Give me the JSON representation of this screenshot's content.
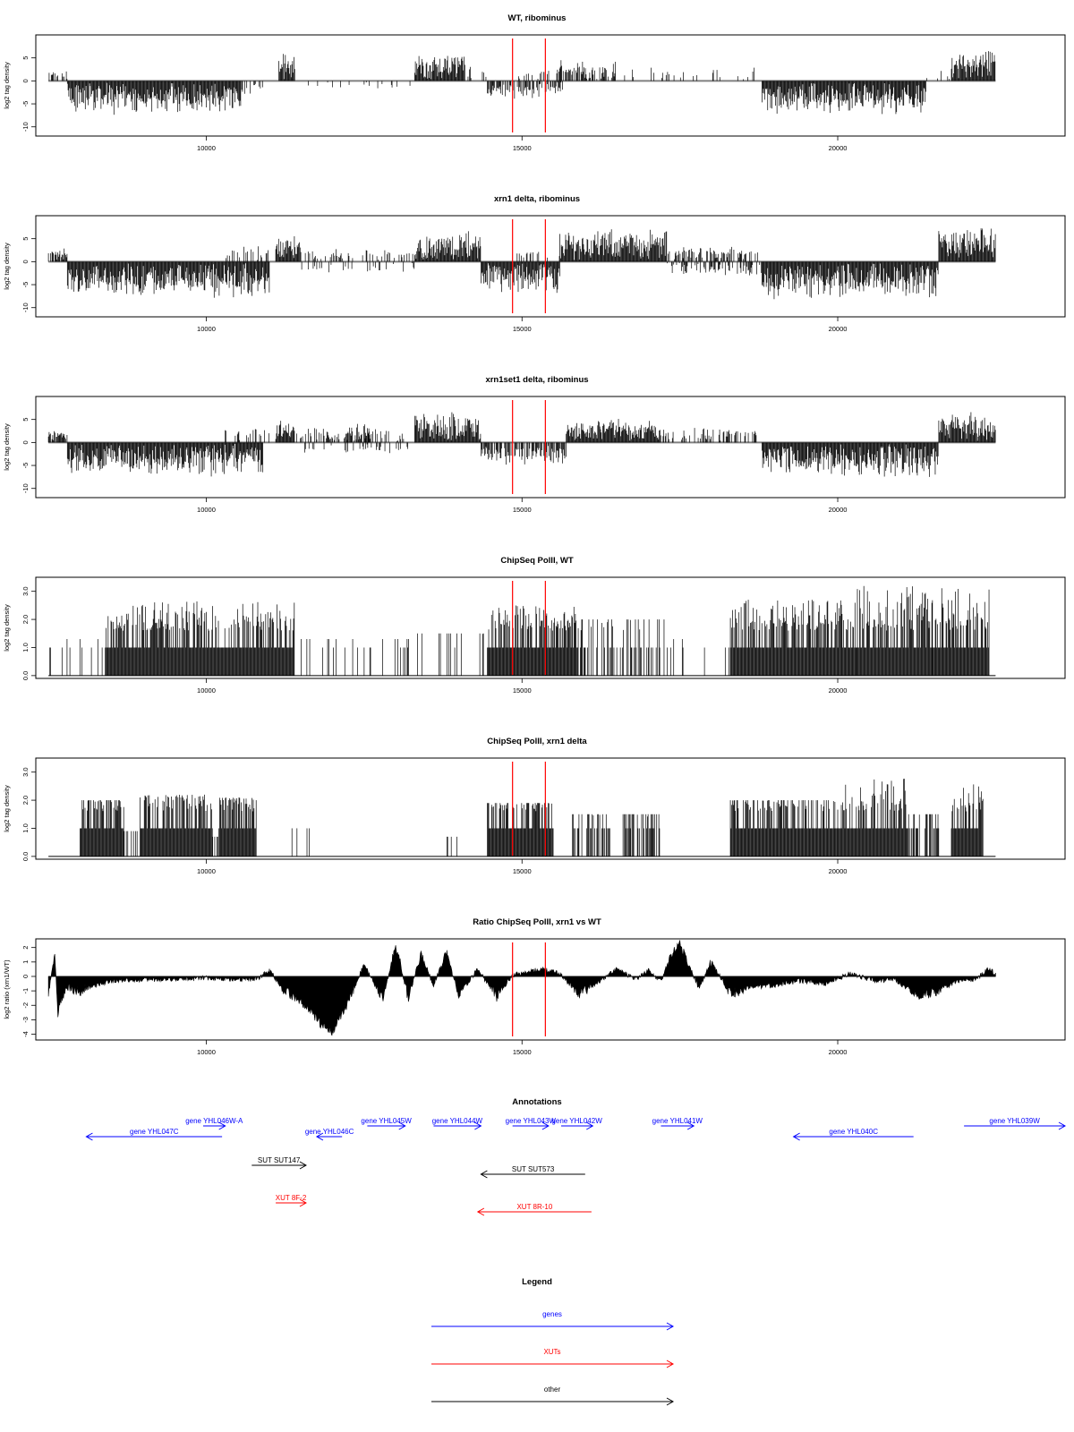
{
  "colors": {
    "bars": "#000000",
    "marker": "#ff0000",
    "gene": "#0000ff",
    "xut": "#ff0000",
    "other": "#000000",
    "frame": "#000000",
    "baseline": "#808080"
  },
  "chart_data": [
    {
      "type": "bar",
      "title": "WT, ribominus",
      "ylabel": "log2 tag density",
      "xlim": [
        7300,
        23600
      ],
      "ylim": [
        -12,
        10
      ],
      "yticks": [
        {
          "v": 5,
          "label": "5"
        },
        {
          "v": 0,
          "label": "0"
        },
        {
          "v": -5,
          "label": "-5"
        },
        {
          "v": -10,
          "label": "-10"
        }
      ],
      "xticks": [
        {
          "v": 10000,
          "label": "10000"
        },
        {
          "v": 15000,
          "label": "15000"
        },
        {
          "v": 20000,
          "label": "20000"
        }
      ],
      "markers": [
        14850,
        15370
      ],
      "segments": [
        {
          "start": 7500,
          "end": 7800,
          "amp": 2,
          "density": 0.6
        },
        {
          "start": 7800,
          "end": 10550,
          "amp": -6.5,
          "density": 1
        },
        {
          "start": 10550,
          "end": 10900,
          "amp": -3,
          "density": 0.5
        },
        {
          "start": 11150,
          "end": 11400,
          "amp": 5.5,
          "density": 1
        },
        {
          "start": 11400,
          "end": 13300,
          "amp": -2,
          "density": 0.08
        },
        {
          "start": 13300,
          "end": 14100,
          "amp": 5.5,
          "density": 1
        },
        {
          "start": 14100,
          "end": 14450,
          "amp": 3,
          "density": 0.25
        },
        {
          "start": 14450,
          "end": 15650,
          "amp": -3.5,
          "density": 0.6
        },
        {
          "start": 14900,
          "end": 15500,
          "amp": 2.5,
          "density": 0.25
        },
        {
          "start": 15550,
          "end": 16500,
          "amp": 4,
          "density": 0.7
        },
        {
          "start": 16500,
          "end": 18800,
          "amp": 2.5,
          "density": 0.12
        },
        {
          "start": 18800,
          "end": 21400,
          "amp": -6.5,
          "density": 1
        },
        {
          "start": 21400,
          "end": 21800,
          "amp": 2,
          "density": 0.2
        },
        {
          "start": 21800,
          "end": 22500,
          "amp": 6.5,
          "density": 1
        }
      ]
    },
    {
      "type": "bar",
      "title": "xrn1 delta, ribominus",
      "ylabel": "log2 tag density",
      "xlim": [
        7300,
        23600
      ],
      "ylim": [
        -12,
        10
      ],
      "yticks": [
        {
          "v": 5,
          "label": "5"
        },
        {
          "v": 0,
          "label": "0"
        },
        {
          "v": -5,
          "label": "-5"
        },
        {
          "v": -10,
          "label": "-10"
        }
      ],
      "xticks": [
        {
          "v": 10000,
          "label": "10000"
        },
        {
          "v": 15000,
          "label": "15000"
        },
        {
          "v": 20000,
          "label": "20000"
        }
      ],
      "markers": [
        14850,
        15370
      ],
      "segments": [
        {
          "start": 7500,
          "end": 7800,
          "amp": 2.5,
          "density": 0.8
        },
        {
          "start": 7800,
          "end": 11000,
          "amp": -7,
          "density": 1
        },
        {
          "start": 10300,
          "end": 11000,
          "amp": 3,
          "density": 0.3
        },
        {
          "start": 11100,
          "end": 11500,
          "amp": 5.5,
          "density": 1
        },
        {
          "start": 11500,
          "end": 13300,
          "amp": 2.5,
          "density": 0.3
        },
        {
          "start": 11500,
          "end": 13300,
          "amp": -2,
          "density": 0.2
        },
        {
          "start": 13300,
          "end": 14350,
          "amp": 6,
          "density": 1
        },
        {
          "start": 14350,
          "end": 15600,
          "amp": -6,
          "density": 1
        },
        {
          "start": 14900,
          "end": 15600,
          "amp": 2.5,
          "density": 0.25
        },
        {
          "start": 15600,
          "end": 17300,
          "amp": 6.5,
          "density": 1
        },
        {
          "start": 17300,
          "end": 18800,
          "amp": 3,
          "density": 0.5
        },
        {
          "start": 17300,
          "end": 18800,
          "amp": -2.5,
          "density": 0.4
        },
        {
          "start": 18800,
          "end": 21600,
          "amp": -7.5,
          "density": 1
        },
        {
          "start": 21600,
          "end": 22500,
          "amp": 7,
          "density": 1
        }
      ]
    },
    {
      "type": "bar",
      "title": "xrn1set1 delta, ribominus",
      "ylabel": "log2 tag density",
      "xlim": [
        7300,
        23600
      ],
      "ylim": [
        -12,
        10
      ],
      "yticks": [
        {
          "v": 5,
          "label": "5"
        },
        {
          "v": 0,
          "label": "0"
        },
        {
          "v": -5,
          "label": "-5"
        },
        {
          "v": -10,
          "label": "-10"
        }
      ],
      "xticks": [
        {
          "v": 10000,
          "label": "10000"
        },
        {
          "v": 15000,
          "label": "15000"
        },
        {
          "v": 20000,
          "label": "20000"
        }
      ],
      "markers": [
        14850,
        15370
      ],
      "segments": [
        {
          "start": 7500,
          "end": 7800,
          "amp": 2.5,
          "density": 0.7
        },
        {
          "start": 7800,
          "end": 10900,
          "amp": -6.5,
          "density": 1
        },
        {
          "start": 10300,
          "end": 11000,
          "amp": 3,
          "density": 0.3
        },
        {
          "start": 11100,
          "end": 11400,
          "amp": 4.5,
          "density": 1
        },
        {
          "start": 11400,
          "end": 13200,
          "amp": 3,
          "density": 0.3
        },
        {
          "start": 11400,
          "end": 13200,
          "amp": -2,
          "density": 0.15
        },
        {
          "start": 12200,
          "end": 12600,
          "amp": 4,
          "density": 0.8
        },
        {
          "start": 13300,
          "end": 14350,
          "amp": 6.5,
          "density": 1
        },
        {
          "start": 14350,
          "end": 15700,
          "amp": -4.5,
          "density": 0.7
        },
        {
          "start": 15700,
          "end": 17200,
          "amp": 4.5,
          "density": 1
        },
        {
          "start": 17200,
          "end": 18800,
          "amp": 3,
          "density": 0.35
        },
        {
          "start": 18800,
          "end": 21600,
          "amp": -7,
          "density": 1
        },
        {
          "start": 21600,
          "end": 22500,
          "amp": 6,
          "density": 1
        }
      ]
    },
    {
      "type": "bar",
      "title": "ChipSeq PolII, WT",
      "ylabel": "log2 tag density",
      "xlim": [
        7300,
        23600
      ],
      "ylim": [
        -0.1,
        3.5
      ],
      "yticks": [
        {
          "v": 0,
          "label": "0.0"
        },
        {
          "v": 1,
          "label": "1.0"
        },
        {
          "v": 2,
          "label": "2.0"
        },
        {
          "v": 3,
          "label": "3.0"
        }
      ],
      "xticks": [
        {
          "v": 10000,
          "label": "10000"
        },
        {
          "v": 15000,
          "label": "15000"
        },
        {
          "v": 20000,
          "label": "20000"
        }
      ],
      "markers": [
        14850,
        15370
      ],
      "segments": [
        {
          "start": 7500,
          "end": 8400,
          "amp": 1.0,
          "density": 0.12
        },
        {
          "start": 8400,
          "end": 11400,
          "amp": 2.5,
          "density": 1
        },
        {
          "start": 11400,
          "end": 13300,
          "amp": 1.0,
          "density": 0.1
        },
        {
          "start": 13300,
          "end": 14450,
          "amp": 1.2,
          "density": 0.15
        },
        {
          "start": 14450,
          "end": 15900,
          "amp": 2.3,
          "density": 1
        },
        {
          "start": 15900,
          "end": 17300,
          "amp": 1.8,
          "density": 0.4
        },
        {
          "start": 17300,
          "end": 18300,
          "amp": 1.0,
          "density": 0.05
        },
        {
          "start": 18300,
          "end": 20300,
          "amp": 2.5,
          "density": 1
        },
        {
          "start": 20300,
          "end": 21500,
          "amp": 3.0,
          "density": 1
        },
        {
          "start": 21500,
          "end": 22400,
          "amp": 3.1,
          "density": 1
        }
      ]
    },
    {
      "type": "bar",
      "title": "ChipSeq PolII, xrn1 delta",
      "ylabel": "log2 tag density",
      "xlim": [
        7300,
        23600
      ],
      "ylim": [
        -0.1,
        3.5
      ],
      "yticks": [
        {
          "v": 0,
          "label": "0.0"
        },
        {
          "v": 1,
          "label": "1.0"
        },
        {
          "v": 2,
          "label": "2.0"
        },
        {
          "v": 3,
          "label": "3.0"
        }
      ],
      "xticks": [
        {
          "v": 10000,
          "label": "10000"
        },
        {
          "v": 15000,
          "label": "15000"
        },
        {
          "v": 20000,
          "label": "20000"
        }
      ],
      "markers": [
        14850,
        15370
      ],
      "segments": [
        {
          "start": 8000,
          "end": 8700,
          "amp": 1.8,
          "density": 1
        },
        {
          "start": 8700,
          "end": 8950,
          "amp": 0.6,
          "density": 0.3
        },
        {
          "start": 8950,
          "end": 10100,
          "amp": 2.0,
          "density": 1
        },
        {
          "start": 10100,
          "end": 10200,
          "amp": 0.4,
          "density": 0.3
        },
        {
          "start": 10200,
          "end": 10800,
          "amp": 1.9,
          "density": 1
        },
        {
          "start": 11300,
          "end": 12300,
          "amp": 0.7,
          "density": 0.05
        },
        {
          "start": 13800,
          "end": 14000,
          "amp": 0.4,
          "density": 0.2
        },
        {
          "start": 14450,
          "end": 15500,
          "amp": 1.6,
          "density": 1
        },
        {
          "start": 15800,
          "end": 16400,
          "amp": 1.2,
          "density": 0.6
        },
        {
          "start": 16600,
          "end": 17200,
          "amp": 1.2,
          "density": 0.6
        },
        {
          "start": 18300,
          "end": 20000,
          "amp": 1.8,
          "density": 1
        },
        {
          "start": 20000,
          "end": 21100,
          "amp": 2.6,
          "density": 1
        },
        {
          "start": 21100,
          "end": 21600,
          "amp": 1.2,
          "density": 0.6
        },
        {
          "start": 21800,
          "end": 22300,
          "amp": 2.4,
          "density": 1
        }
      ]
    },
    {
      "type": "area",
      "title": "Ratio ChipSeq PolII, xrn1 vs WT",
      "ylabel": "log2 ratio (xrn1/WT)",
      "xlim": [
        7300,
        23600
      ],
      "ylim": [
        -4.4,
        2.6
      ],
      "yticks": [
        {
          "v": 2,
          "label": "2"
        },
        {
          "v": 1,
          "label": "1"
        },
        {
          "v": 0,
          "label": "0"
        },
        {
          "v": -1,
          "label": "-1"
        },
        {
          "v": -2,
          "label": "-2"
        },
        {
          "v": -3,
          "label": "-3"
        },
        {
          "v": -4,
          "label": "-4"
        }
      ],
      "xticks": [
        {
          "v": 10000,
          "label": "10000"
        },
        {
          "v": 15000,
          "label": "15000"
        },
        {
          "v": 20000,
          "label": "20000"
        }
      ],
      "markers": [
        14850,
        15370
      ],
      "x": [
        7500,
        7600,
        7650,
        7750,
        7800,
        8000,
        8500,
        9000,
        9500,
        10000,
        10500,
        10800,
        11000,
        11200,
        11500,
        11800,
        12000,
        12200,
        12500,
        12800,
        13000,
        13200,
        13400,
        13600,
        13800,
        14000,
        14300,
        14600,
        14850,
        15100,
        15300,
        15600,
        15900,
        16200,
        16500,
        16800,
        17000,
        17200,
        17400,
        17500,
        17600,
        17800,
        18000,
        18300,
        18600,
        19000,
        19400,
        19800,
        20200,
        20600,
        20900,
        21100,
        21300,
        21600,
        21900,
        22200,
        22400,
        22500
      ],
      "y": [
        -1.2,
        1.5,
        -2.5,
        -1.0,
        -0.8,
        -1.0,
        -0.3,
        -0.2,
        -0.2,
        -0.1,
        -0.2,
        -0.2,
        0.4,
        -0.8,
        -1.8,
        -3.2,
        -3.8,
        -2.2,
        0.8,
        -1.6,
        2.2,
        -1.5,
        1.5,
        -0.6,
        1.7,
        -1.3,
        0.5,
        -1.4,
        0.1,
        0.3,
        0.5,
        0.2,
        -1.2,
        -0.4,
        0.5,
        -0.2,
        0.4,
        -0.3,
        1.8,
        2.3,
        1.2,
        -0.8,
        1.0,
        -1.2,
        -0.8,
        -0.6,
        -0.3,
        -0.5,
        0.2,
        -0.3,
        -0.2,
        -0.8,
        -1.3,
        -1.0,
        -0.3,
        -0.2,
        0.6,
        0.1
      ]
    }
  ],
  "annotations": {
    "title": "Annotations",
    "features": [
      {
        "label": "gene YHL047C",
        "type": "gene",
        "start": 8100,
        "end": 10250,
        "strand": "-",
        "row": 1
      },
      {
        "label": "gene YHL046W-A",
        "type": "gene",
        "start": 9950,
        "end": 10300,
        "strand": "+",
        "row": 0
      },
      {
        "label": "gene YHL046C",
        "type": "gene",
        "start": 11750,
        "end": 12150,
        "strand": "-",
        "row": 1
      },
      {
        "label": "gene YHL045W",
        "type": "gene",
        "start": 12550,
        "end": 13150,
        "strand": "+",
        "row": 0
      },
      {
        "label": "gene YHL044W",
        "type": "gene",
        "start": 13600,
        "end": 14350,
        "strand": "+",
        "row": 0
      },
      {
        "label": "gene YHL043W",
        "type": "gene",
        "start": 14850,
        "end": 15420,
        "strand": "+",
        "row": 0
      },
      {
        "label": "gene YHL042W",
        "type": "gene",
        "start": 15620,
        "end": 16120,
        "strand": "+",
        "row": 0
      },
      {
        "label": "gene YHL041W",
        "type": "gene",
        "start": 17200,
        "end": 17720,
        "strand": "+",
        "row": 0
      },
      {
        "label": "gene YHL040C",
        "type": "gene",
        "start": 19300,
        "end": 21200,
        "strand": "-",
        "row": 1
      },
      {
        "label": "gene YHL039W",
        "type": "gene",
        "start": 22000,
        "end": 23600,
        "strand": "+",
        "row": 0
      },
      {
        "label": "SUT SUT147",
        "type": "other",
        "start": 10720,
        "end": 11580,
        "strand": "+",
        "row": 2
      },
      {
        "label": "SUT SUT573",
        "type": "other",
        "start": 14350,
        "end": 16000,
        "strand": "-",
        "row": 3
      },
      {
        "label": "XUT 8F-2",
        "type": "xut",
        "start": 11100,
        "end": 11580,
        "strand": "+",
        "row": 4
      },
      {
        "label": "XUT 8R-10",
        "type": "xut",
        "start": 14300,
        "end": 16100,
        "strand": "-",
        "row": 5
      }
    ]
  },
  "legend": {
    "title": "Legend",
    "items": [
      {
        "label": "genes",
        "type": "gene"
      },
      {
        "label": "XUTs",
        "type": "xut"
      },
      {
        "label": "other",
        "type": "other"
      }
    ]
  }
}
